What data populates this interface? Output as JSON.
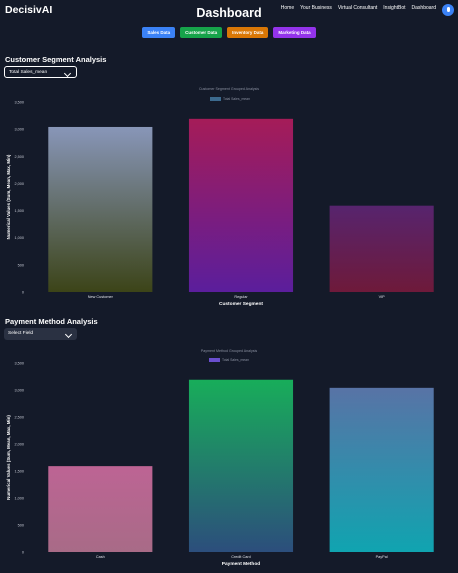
{
  "header": {
    "logo": "DecisivAI",
    "title": "Dashboard",
    "nav": [
      "Home",
      "Your Business",
      "Virtual Consultant",
      "InsightBot",
      "Dashboard"
    ]
  },
  "tabs": [
    {
      "label": "Sales Data",
      "color": "#3b82f6"
    },
    {
      "label": "Customer Data",
      "color": "#16a34a"
    },
    {
      "label": "Inventory Data",
      "color": "#d97706"
    },
    {
      "label": "Marketing Data",
      "color": "#9333ea"
    }
  ],
  "customer_section": {
    "title": "Customer Segment Analysis",
    "select_value": "Total Sales_mean"
  },
  "payment_section": {
    "title": "Payment Method Analysis",
    "select_value": "Select Field"
  },
  "chart_data": [
    {
      "type": "bar",
      "title": "Customer Segment Grouped Analysis",
      "legend": "Total Sales_mean",
      "xlabel": "Customer Segment",
      "ylabel": "Numerical Values (Sum, Mean, Max, Min)",
      "categories": [
        "New Customer",
        "Regular",
        "VIP"
      ],
      "values": [
        3040,
        3190,
        1590
      ],
      "ylim": [
        0,
        3500
      ],
      "yticks": [
        0,
        500,
        1000,
        1500,
        2000,
        2500,
        3000,
        3500
      ],
      "bar_colors": [
        [
          "#8896b8",
          "#3c4418"
        ],
        [
          "#a51c58",
          "#5b1e9c"
        ],
        [
          "#57246e",
          "#6e1a3a"
        ]
      ],
      "legend_color": "#3c6a8e"
    },
    {
      "type": "bar",
      "title": "Payment Method Grouped Analysis",
      "legend": "Total Sales_mean",
      "xlabel": "Payment Method",
      "ylabel": "Numerical Values (Sum, Mean, Max, Min)",
      "categories": [
        "Cash",
        "Credit Card",
        "PayPal"
      ],
      "values": [
        1590,
        3190,
        3040
      ],
      "ylim": [
        0,
        3500
      ],
      "yticks": [
        0,
        500,
        1000,
        1500,
        2000,
        2500,
        3000,
        3500
      ],
      "bar_colors": [
        [
          "#bd6494",
          "#a86b87"
        ],
        [
          "#18ad5a",
          "#2c4e7c"
        ],
        [
          "#5873a6",
          "#10a4b0"
        ]
      ],
      "legend_color": "#6a4fcf"
    }
  ]
}
